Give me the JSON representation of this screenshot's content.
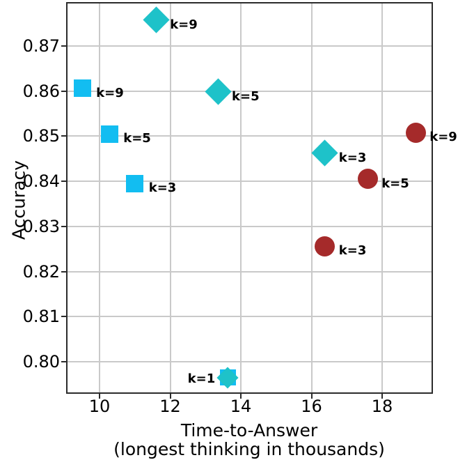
{
  "chart_data": {
    "type": "scatter",
    "title": "",
    "xlabel": "Time-to-Answer",
    "xlabel_line2": "(longest thinking in thousands)",
    "ylabel": "Accuracy",
    "xlim": [
      9.054,
      19.438
    ],
    "ylim": [
      0.7929,
      0.8797
    ],
    "grid": true,
    "legend": "none",
    "xticks": {
      "values": [
        10,
        12,
        14,
        16,
        18
      ],
      "labels": [
        "10",
        "12",
        "14",
        "16",
        "18"
      ]
    },
    "yticks": {
      "values": [
        0.8,
        0.81,
        0.82,
        0.83,
        0.84,
        0.85,
        0.86,
        0.87
      ],
      "labels": [
        "0.80",
        "0.81",
        "0.82",
        "0.83",
        "0.84",
        "0.85",
        "0.86",
        "0.87"
      ]
    },
    "marker_defaults": {
      "square": 25,
      "diamond": 27,
      "circle": 29
    },
    "label_offsets": {
      "right": {
        "dx": 20,
        "dy": 7
      },
      "left": {
        "dx": -18,
        "dy": 2
      }
    },
    "series": [
      {
        "name": "square-series",
        "marker": "square",
        "color": "#12bdf1",
        "points": [
          {
            "k": 1,
            "x": 13.63,
            "y": 0.7965,
            "size": 23,
            "label": "",
            "label_side": "right"
          },
          {
            "k": 3,
            "x": 11.0,
            "y": 0.8395,
            "label": "k=3",
            "label_side": "right"
          },
          {
            "k": 5,
            "x": 10.28,
            "y": 0.8505,
            "label": "k=5",
            "label_side": "right"
          },
          {
            "k": 9,
            "x": 9.51,
            "y": 0.8606,
            "label": "k=9",
            "label_side": "right"
          }
        ]
      },
      {
        "name": "circle-series",
        "marker": "circle",
        "color": "#a52a2a",
        "points": [
          {
            "k": 3,
            "x": 16.38,
            "y": 0.8256,
            "label": "k=3",
            "label_side": "right"
          },
          {
            "k": 5,
            "x": 17.59,
            "y": 0.8405,
            "label": "k=5",
            "label_side": "right"
          },
          {
            "k": 9,
            "x": 18.95,
            "y": 0.8508,
            "label": "k=9",
            "label_side": "right"
          }
        ]
      },
      {
        "name": "diamond-series",
        "marker": "diamond",
        "color": "#1ec2c9",
        "points": [
          {
            "k": 1,
            "x": 13.63,
            "y": 0.7965,
            "size": 22,
            "label": "k=1",
            "label_side": "left"
          },
          {
            "k": 3,
            "x": 16.38,
            "y": 0.8462,
            "label": "k=3",
            "label_side": "right"
          },
          {
            "k": 5,
            "x": 13.35,
            "y": 0.8598,
            "label": "k=5",
            "label_side": "right"
          },
          {
            "k": 9,
            "x": 11.6,
            "y": 0.8757,
            "label": "k=9",
            "label_side": "right"
          }
        ]
      }
    ],
    "colors": {
      "square": "#12bdf1",
      "diamond": "#1ec2c9",
      "circle": "#a52a2a",
      "grid": "#c9c9c9",
      "spine": "#2b2b2b",
      "text": "#000000"
    }
  }
}
